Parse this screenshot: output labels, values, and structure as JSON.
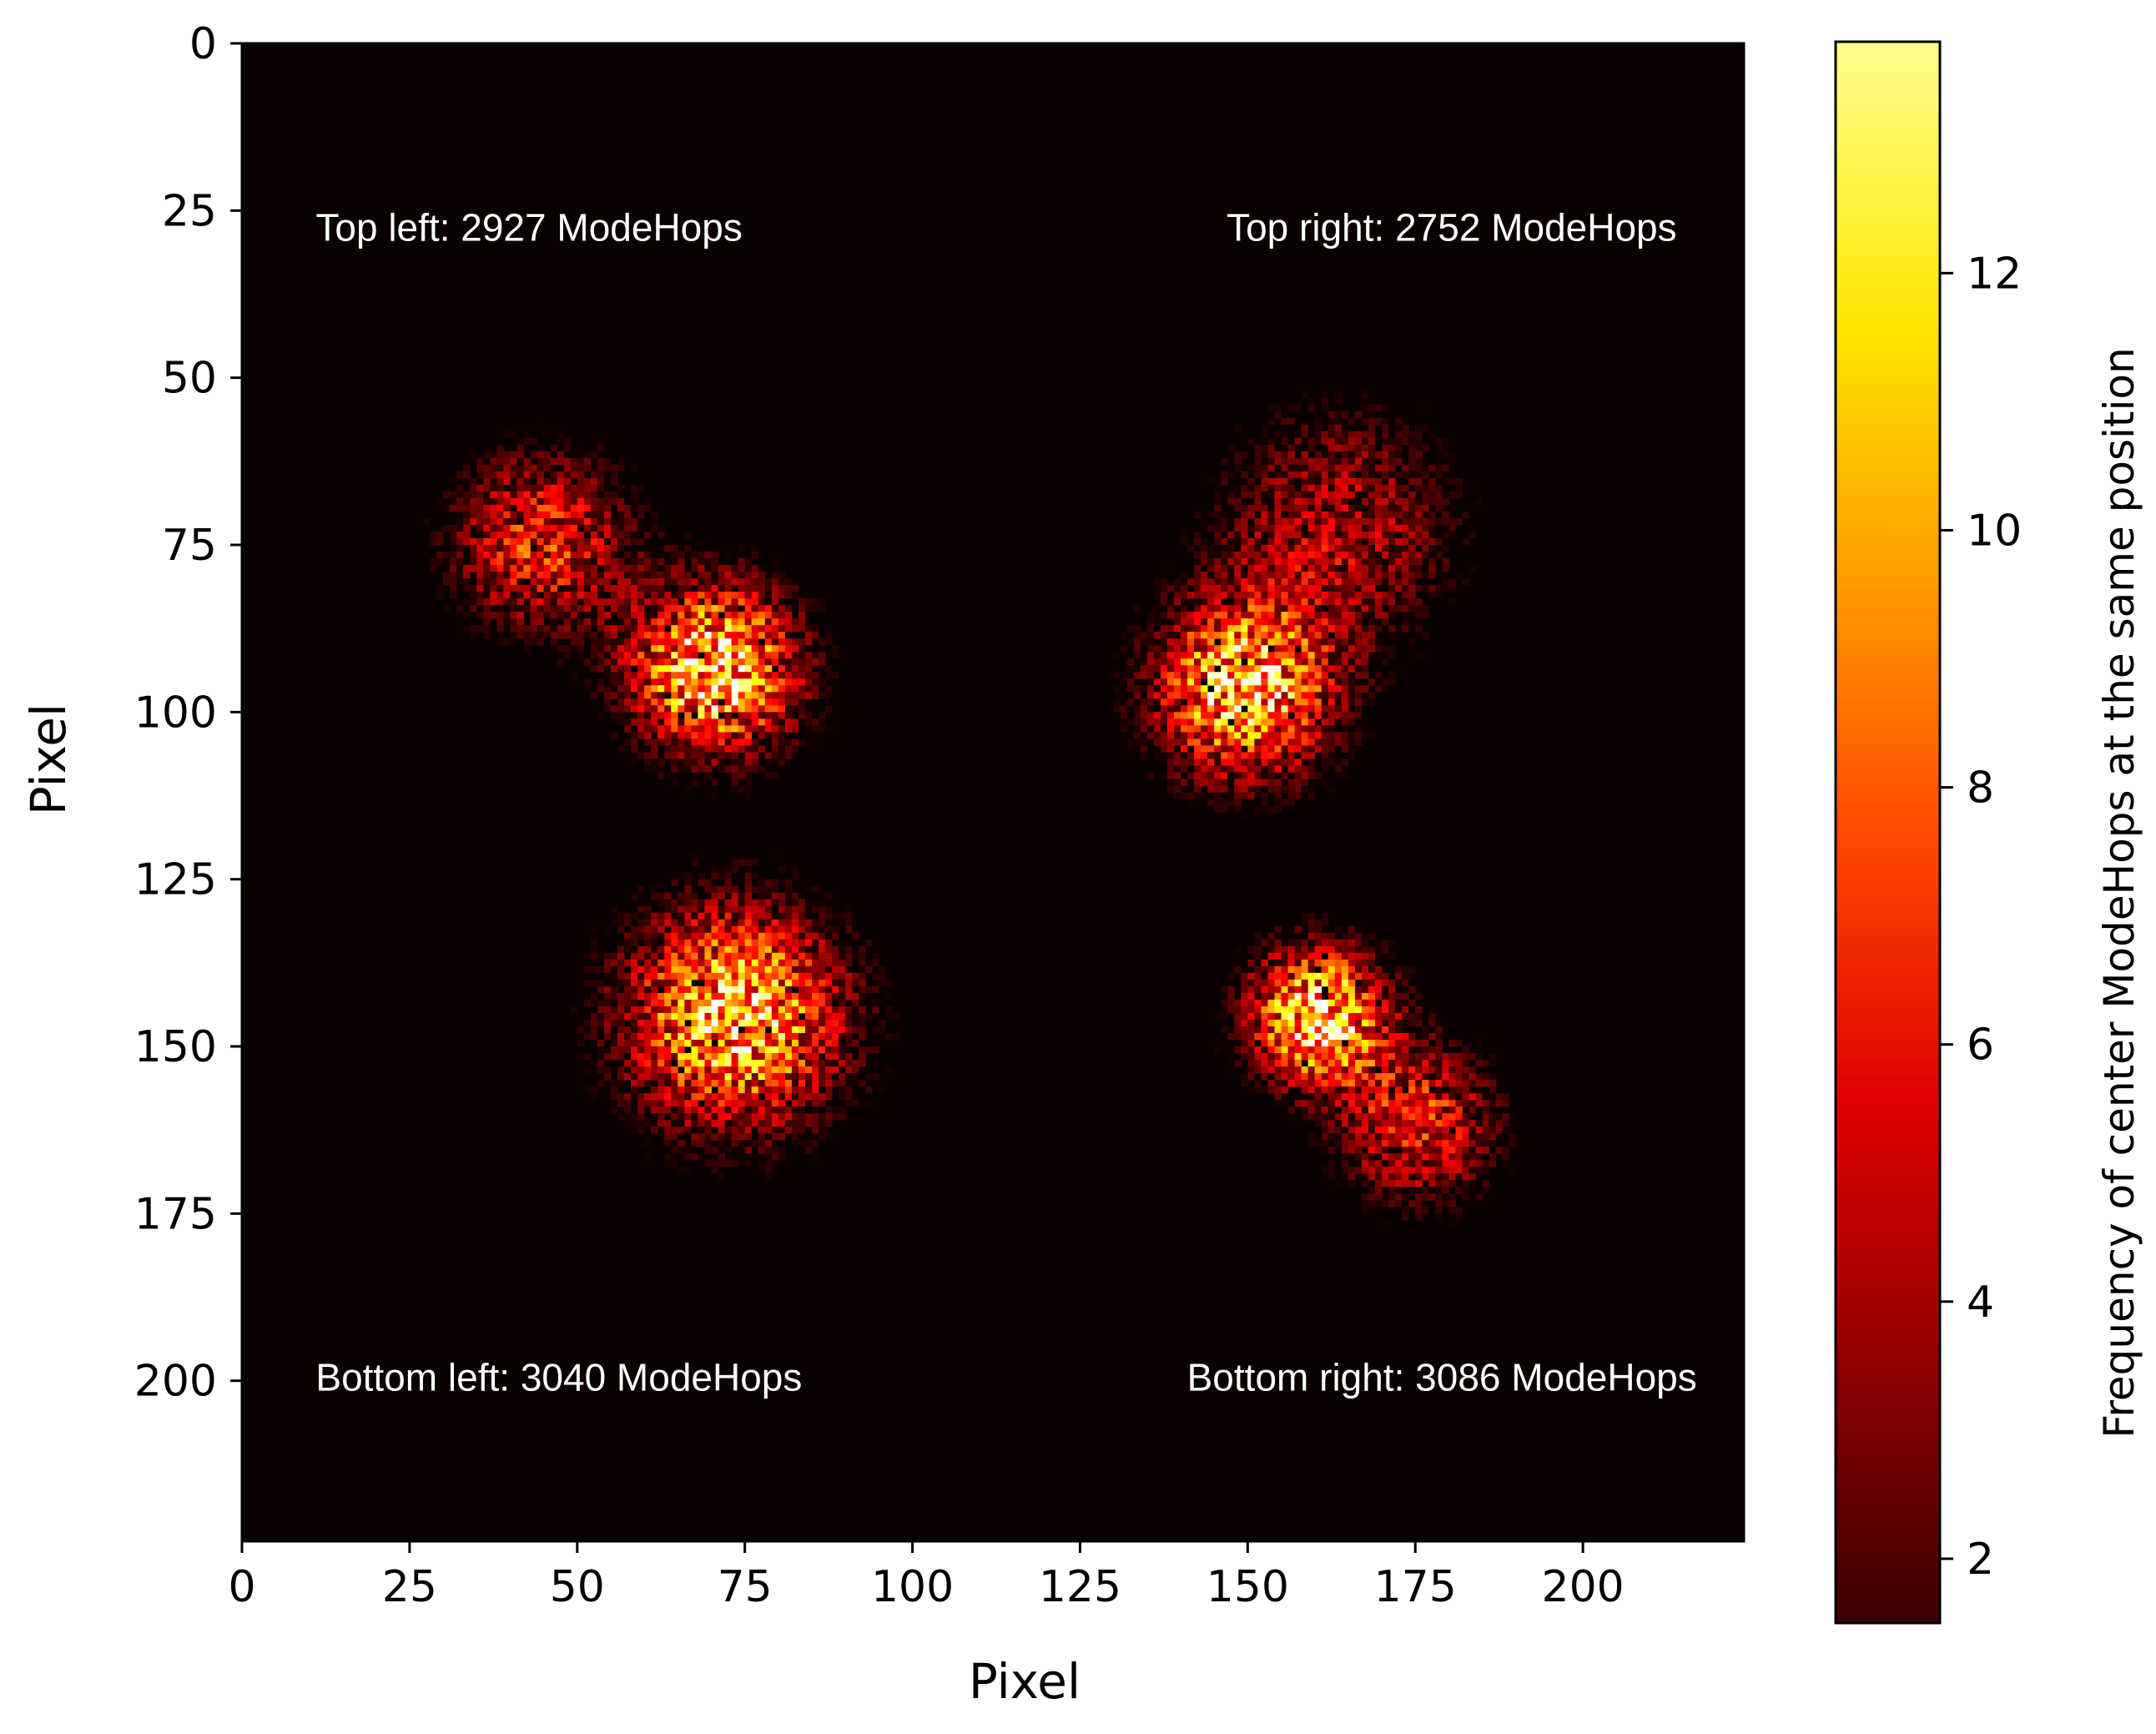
{
  "chart_data": {
    "type": "heatmap",
    "colormap": "hot",
    "xlabel": "Pixel",
    "ylabel": "Pixel",
    "x_range": [
      0,
      224
    ],
    "y_range": [
      0,
      224
    ],
    "y_inverted": true,
    "x_ticks": [
      0,
      25,
      50,
      75,
      100,
      125,
      150,
      175,
      200
    ],
    "y_ticks": [
      0,
      25,
      50,
      75,
      100,
      125,
      150,
      175,
      200
    ],
    "background_color": "#0a0000",
    "annotations": [
      {
        "text": "Top left: 2927 ModeHops",
        "x": 11,
        "y": 27.5,
        "align": "start"
      },
      {
        "text": "Top right: 2752 ModeHops",
        "x": 214,
        "y": 27.5,
        "align": "end"
      },
      {
        "text": "Bottom left: 3040 ModeHops",
        "x": 11,
        "y": 199.5,
        "align": "start"
      },
      {
        "text": "Bottom right: 3086 ModeHops",
        "x": 217,
        "y": 199.5,
        "align": "end"
      }
    ],
    "clusters": [
      {
        "name": "top-left",
        "cx": 70,
        "cy": 93,
        "sigma": 8.5,
        "peak": 13
      },
      {
        "name": "top-left-upper",
        "cx": 44,
        "cy": 74,
        "sigma": 9,
        "peak": 7
      },
      {
        "name": "top-right",
        "cx": 149,
        "cy": 96,
        "sigma": 9,
        "peak": 12
      },
      {
        "name": "top-right-upper",
        "cx": 163,
        "cy": 72,
        "sigma": 12,
        "peak": 5
      },
      {
        "name": "bottom-left",
        "cx": 73,
        "cy": 145,
        "sigma": 11,
        "peak": 12
      },
      {
        "name": "bottom-right",
        "cx": 160,
        "cy": 145,
        "sigma": 7,
        "peak": 13
      },
      {
        "name": "bottom-right-lower",
        "cx": 175,
        "cy": 161,
        "sigma": 8,
        "peak": 7
      }
    ],
    "colorbar": {
      "label": "Frequency of center ModeHops at the same position",
      "min": 1.5,
      "max": 13.8,
      "ticks": [
        2,
        4,
        6,
        8,
        10,
        12
      ]
    }
  }
}
